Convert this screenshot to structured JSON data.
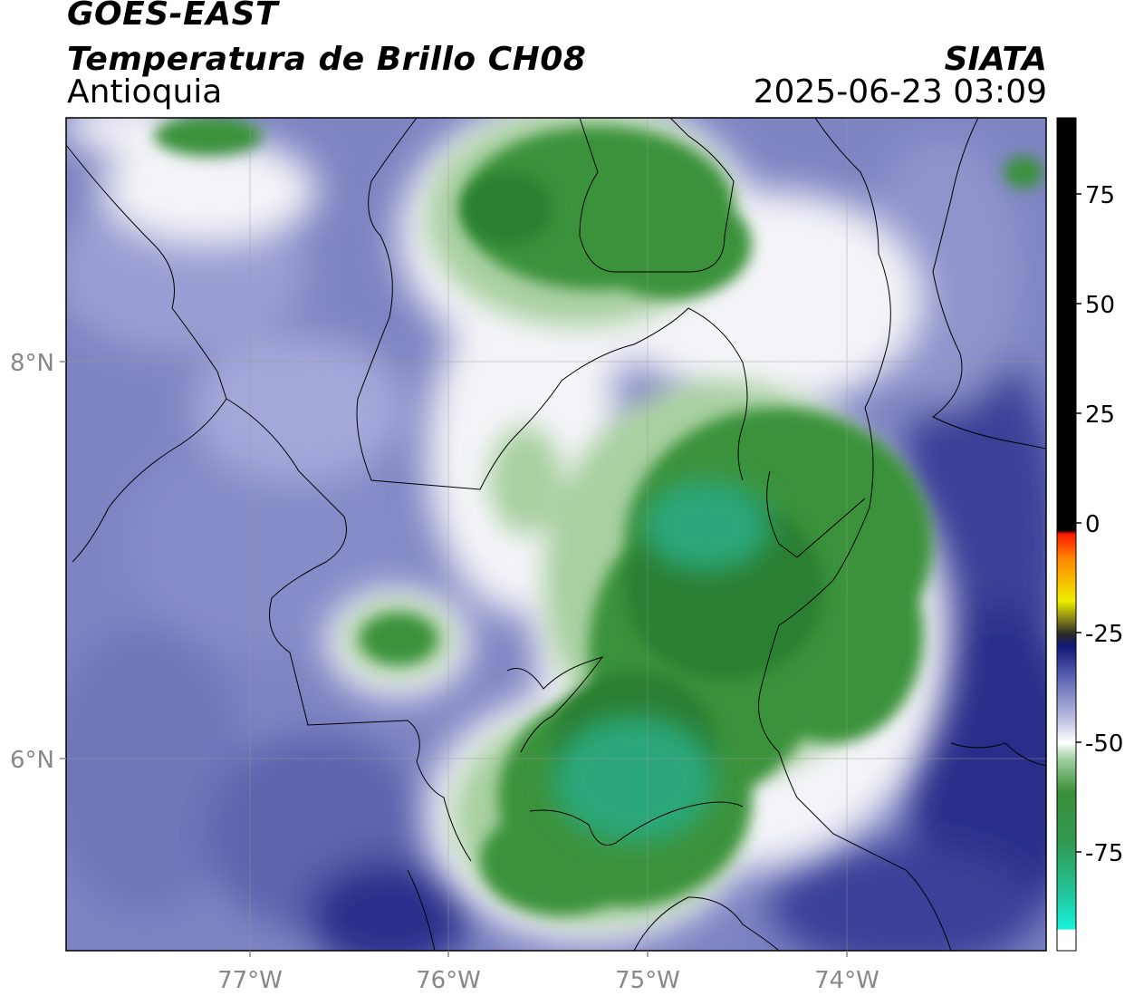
{
  "header": {
    "satellite": "GOES-EAST",
    "product": "Temperatura de Brillo CH08",
    "region": "Antioquia",
    "source": "SIATA",
    "datetime": "2025-06-23 03:09"
  },
  "map": {
    "lon_ticks": [
      "77°W",
      "76°W",
      "75°W",
      "74°W"
    ],
    "lat_ticks": [
      "8°N",
      "6°N"
    ]
  },
  "colorbar": {
    "ticks": [
      "75",
      "50",
      "25",
      "0",
      "-25",
      "-50",
      "-75"
    ],
    "colors": {
      "cold_cyan": "#19e6d2",
      "green_dark": "#2f8a2f",
      "green_mid": "#3f9e3f",
      "white": "#ffffff",
      "blue_light": "#8f94cc",
      "blue_dark": "#1a1f7a",
      "warm_red": "#ff2a00",
      "warm_yellow": "#ffef00",
      "hot_black": "#000000"
    }
  }
}
